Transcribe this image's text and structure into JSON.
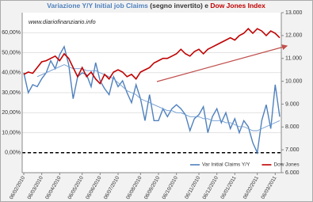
{
  "chart_data": {
    "type": "line",
    "title": [
      {
        "text": "Variazione Y/Y Initial job Claims",
        "color": "#4f81bd"
      },
      {
        "text": "(segno invertito) e",
        "color": "#333333"
      },
      {
        "text": "Dow Jones Index",
        "color": "#c00000"
      }
    ],
    "annotation": "www.diariofinanziario.info",
    "categories": [
      "06/02/2010",
      null,
      null,
      null,
      "06/03/2010",
      null,
      null,
      null,
      "06/04/2010",
      null,
      null,
      null,
      null,
      "06/05/2010",
      null,
      null,
      null,
      "06/06/2010",
      null,
      null,
      null,
      "06/07/2010",
      null,
      null,
      null,
      null,
      "06/08/2010",
      null,
      null,
      null,
      "06/09/2010",
      null,
      null,
      null,
      "06/10/2010",
      null,
      null,
      null,
      null,
      "06/11/2010",
      null,
      null,
      null,
      "06/12/2010",
      null,
      null,
      null,
      "06/01/2011",
      null,
      null,
      null,
      null,
      "06/02/2011",
      null,
      null,
      null,
      "06/03/2011",
      null
    ],
    "series": [
      {
        "name": "Var Initial Claims Y/Y",
        "color": "#4f81bd",
        "width": 1.4,
        "values": [
          40,
          30,
          34,
          33,
          37,
          40,
          46,
          42,
          49,
          53,
          44,
          27,
          38,
          40,
          39,
          33,
          45,
          36,
          32,
          29,
          38,
          33,
          36,
          30,
          25,
          34,
          27,
          16,
          29,
          16,
          16,
          22,
          18,
          22,
          24,
          22,
          19,
          11,
          17,
          19,
          23,
          10,
          18,
          22,
          15,
          20,
          12,
          17,
          10,
          16,
          13,
          5,
          0,
          16,
          24,
          12,
          34,
          18
        ]
      },
      {
        "color": "#6f9bd1",
        "width": 0.9,
        "values": [
          null,
          null,
          null,
          38,
          39,
          40,
          41,
          42,
          43,
          44,
          43,
          42,
          42,
          42,
          41,
          41,
          41,
          40,
          39,
          38,
          37,
          35,
          33,
          31,
          30,
          29,
          27,
          26,
          25,
          24,
          23,
          22,
          21,
          21,
          20,
          20,
          19,
          18,
          18,
          18,
          17,
          17,
          16,
          16,
          16,
          15,
          15,
          14,
          13,
          13,
          12,
          11,
          11,
          12,
          13,
          14,
          15,
          16
        ]
      },
      {
        "name": "Dow Jones",
        "color": "#c00000",
        "width": 1.6,
        "axis": "y2",
        "values": [
          10300,
          10400,
          10350,
          10600,
          10850,
          10900,
          11000,
          11100,
          10900,
          11200,
          11000,
          10600,
          10200,
          10600,
          10200,
          10400,
          10100,
          9900,
          10300,
          10100,
          10400,
          10500,
          10400,
          10200,
          10300,
          10100,
          10400,
          10500,
          10600,
          10800,
          10900,
          11000,
          11000,
          11100,
          11200,
          11400,
          11200,
          11100,
          11300,
          11400,
          11200,
          11400,
          11500,
          11600,
          11700,
          11800,
          11900,
          11800,
          12000,
          12100,
          12300,
          12100,
          12300,
          12200,
          12000,
          12200,
          12100,
          11900
        ]
      }
    ],
    "ylim": [
      -10,
      70
    ],
    "yticks": [
      {
        "value": 0,
        "label": "0,00%"
      },
      {
        "value": 10,
        "label": "10,00%"
      },
      {
        "value": 20,
        "label": "20,00%"
      },
      {
        "value": 30,
        "label": "30,00%"
      },
      {
        "value": 40,
        "label": "40,00%"
      },
      {
        "value": 50,
        "label": "50,00%"
      },
      {
        "value": 60,
        "label": "60,00%"
      }
    ],
    "y2lim": [
      6000,
      13000
    ],
    "y2ticks": [
      {
        "value": 6000,
        "label": "6.000"
      },
      {
        "value": 7000,
        "label": "7.000"
      },
      {
        "value": 8000,
        "label": "8.000"
      },
      {
        "value": 9000,
        "label": "9.000"
      },
      {
        "value": 10000,
        "label": "10.000"
      },
      {
        "value": 11000,
        "label": "11.000"
      },
      {
        "value": 12000,
        "label": "12.000"
      },
      {
        "value": 13000,
        "label": "13.000"
      }
    ],
    "grid": true
  }
}
